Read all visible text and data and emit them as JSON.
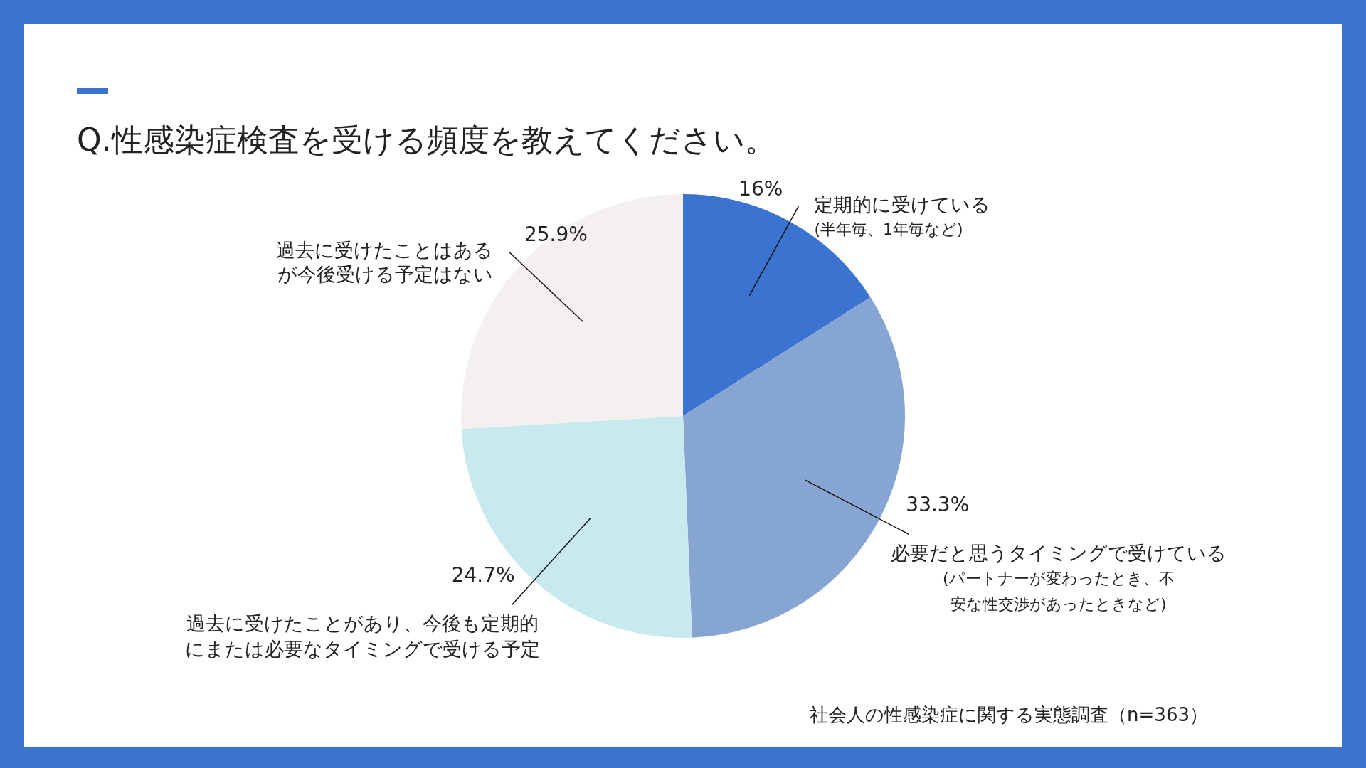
{
  "chart_data": {
    "type": "pie",
    "title": "Q.性感染症検査を受ける頻度を教えてください。",
    "categories": [
      "定期的に受けている\n(半年毎、1年毎など)",
      "必要だと思うタイミングで受けている\n(パートナーが変わったとき、不安な性交渉があったときなど)",
      "過去に受けたことがあり、今後も定期的にまたは必要なタイミングで受ける予定",
      "過去に受けたことはあるが今後受ける予定はない"
    ],
    "values": [
      16,
      33.3,
      24.7,
      25.9
    ],
    "colors": [
      "#3b73d1",
      "#87a5d3",
      "#c8eaee",
      "#f3f0ef"
    ],
    "value_labels": [
      "16%",
      "33.3%",
      "24.7%",
      "25.9%"
    ],
    "legend": false,
    "annotations": [
      "社会人の性感染症に関する実態調査（n=363）"
    ]
  }
}
